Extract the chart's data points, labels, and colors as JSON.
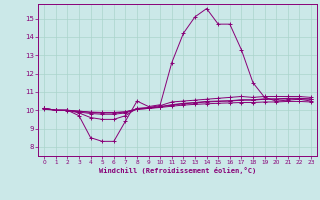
{
  "xlabel": "Windchill (Refroidissement éolien,°C)",
  "background_color": "#cbe8e8",
  "line_color": "#880077",
  "grid_color": "#aad4cc",
  "xlim": [
    -0.5,
    23.5
  ],
  "ylim": [
    7.5,
    15.8
  ],
  "xticks": [
    0,
    1,
    2,
    3,
    4,
    5,
    6,
    7,
    8,
    9,
    10,
    11,
    12,
    13,
    14,
    15,
    16,
    17,
    18,
    19,
    20,
    21,
    22,
    23
  ],
  "yticks": [
    8,
    9,
    10,
    11,
    12,
    13,
    14,
    15
  ],
  "hours": [
    0,
    1,
    2,
    3,
    4,
    5,
    6,
    7,
    8,
    9,
    10,
    11,
    12,
    13,
    14,
    15,
    16,
    17,
    18,
    19,
    20,
    21,
    22,
    23
  ],
  "series": [
    [
      10.1,
      10.0,
      10.0,
      9.7,
      8.5,
      8.3,
      8.3,
      9.4,
      10.5,
      10.2,
      10.3,
      12.6,
      14.2,
      15.1,
      15.55,
      14.7,
      14.7,
      13.3,
      11.5,
      10.7,
      10.5,
      10.55,
      10.6,
      10.5
    ],
    [
      10.1,
      10.0,
      10.0,
      9.85,
      9.6,
      9.5,
      9.5,
      9.7,
      10.1,
      10.15,
      10.25,
      10.45,
      10.5,
      10.55,
      10.6,
      10.65,
      10.7,
      10.75,
      10.7,
      10.75,
      10.75,
      10.75,
      10.75,
      10.7
    ],
    [
      10.1,
      10.0,
      10.0,
      9.9,
      9.82,
      9.78,
      9.78,
      9.85,
      10.05,
      10.1,
      10.18,
      10.28,
      10.35,
      10.4,
      10.45,
      10.48,
      10.5,
      10.55,
      10.55,
      10.6,
      10.6,
      10.62,
      10.62,
      10.6
    ],
    [
      10.1,
      10.0,
      10.0,
      9.95,
      9.88,
      9.85,
      9.85,
      9.9,
      10.08,
      10.12,
      10.2,
      10.3,
      10.38,
      10.42,
      10.48,
      10.5,
      10.52,
      10.57,
      10.57,
      10.62,
      10.62,
      10.65,
      10.65,
      10.62
    ],
    [
      10.05,
      10.0,
      9.98,
      9.95,
      9.9,
      9.88,
      9.88,
      9.92,
      10.05,
      10.1,
      10.15,
      10.22,
      10.28,
      10.32,
      10.35,
      10.38,
      10.4,
      10.42,
      10.42,
      10.45,
      10.45,
      10.48,
      10.48,
      10.45
    ]
  ]
}
